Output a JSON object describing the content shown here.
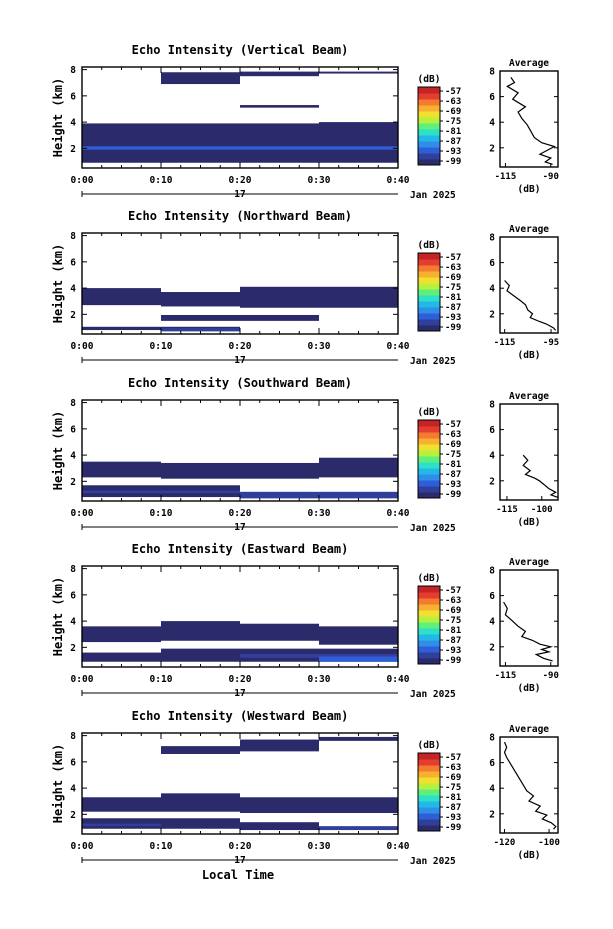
{
  "figure": {
    "x_axis_label": "Local Time",
    "date_day": "17",
    "date_month_year": "Jan 2025",
    "x_tick_labels": [
      "0:00",
      "0:10",
      "0:20",
      "0:30",
      "0:40"
    ],
    "colorbar_unit": "(dB)",
    "colorbar_ticks": [
      "-57",
      "-63",
      "-69",
      "-75",
      "-81",
      "-87",
      "-93",
      "-99"
    ],
    "colorbar_colors": [
      "#2b2b6b",
      "#2f3f9a",
      "#2f5fd8",
      "#2f8fe8",
      "#22b8e8",
      "#2ee0c8",
      "#5ef07a",
      "#b8f040",
      "#f0e030",
      "#f8b030",
      "#f47a30",
      "#e33d30",
      "#c42424"
    ],
    "height_axis_label": "Height (km)",
    "height_ticks": [
      "2",
      "4",
      "6",
      "8"
    ],
    "profile_title": "Average",
    "profile_unit": "(dB)"
  },
  "chart_data": [
    {
      "type": "heatmap",
      "title": "Echo Intensity (Vertical Beam)",
      "xlabel": "",
      "ylabel": "Height (km)",
      "xlim_minutes": [
        0,
        40
      ],
      "ylim_km": [
        0.5,
        8.2
      ],
      "colorbar": {
        "label": "(dB)",
        "range": [
          -99,
          -57
        ]
      },
      "cells": [
        {
          "t": [
            10,
            20
          ],
          "h": [
            6.9,
            7.8
          ],
          "dB": -99
        },
        {
          "t": [
            20,
            30
          ],
          "h": [
            7.5,
            7.85
          ],
          "dB": -99
        },
        {
          "t": [
            30,
            40
          ],
          "h": [
            7.7,
            7.85
          ],
          "dB": -99
        },
        {
          "t": [
            20,
            30
          ],
          "h": [
            5.1,
            5.3
          ],
          "dB": -99
        },
        {
          "t": [
            0,
            30
          ],
          "h": [
            0.9,
            3.9
          ],
          "dB": -98
        },
        {
          "t": [
            30,
            40
          ],
          "h": [
            0.9,
            4.0
          ],
          "dB": -98
        },
        {
          "t": [
            0,
            40
          ],
          "h": [
            1.9,
            2.15
          ],
          "dB": -93
        }
      ],
      "profile": {
        "title": "Average",
        "xlabel": "(dB)",
        "x_ticks": [
          "-115",
          "-90"
        ],
        "xlim": [
          -118,
          -86
        ],
        "ylim_km": [
          0.5,
          8
        ],
        "points": [
          [
            -112,
            7.5
          ],
          [
            -110,
            7.1
          ],
          [
            -114,
            6.8
          ],
          [
            -108,
            6.3
          ],
          [
            -111,
            5.8
          ],
          [
            -104,
            5.2
          ],
          [
            -108,
            4.8
          ],
          [
            -106,
            4.3
          ],
          [
            -103,
            3.8
          ],
          [
            -101,
            3.3
          ],
          [
            -99,
            2.8
          ],
          [
            -95,
            2.4
          ],
          [
            -88,
            2.1
          ],
          [
            -92,
            1.8
          ],
          [
            -96,
            1.5
          ],
          [
            -90,
            1.2
          ],
          [
            -93,
            0.9
          ],
          [
            -89,
            0.7
          ]
        ]
      }
    },
    {
      "type": "heatmap",
      "title": "Echo Intensity (Northward Beam)",
      "xlabel": "",
      "ylabel": "Height (km)",
      "xlim_minutes": [
        0,
        40
      ],
      "ylim_km": [
        0.5,
        8.2
      ],
      "colorbar": {
        "label": "(dB)",
        "range": [
          -99,
          -57
        ]
      },
      "cells": [
        {
          "t": [
            0,
            10
          ],
          "h": [
            2.7,
            4.0
          ],
          "dB": -99
        },
        {
          "t": [
            10,
            20
          ],
          "h": [
            2.6,
            3.7
          ],
          "dB": -99
        },
        {
          "t": [
            20,
            40
          ],
          "h": [
            2.5,
            4.1
          ],
          "dB": -99
        },
        {
          "t": [
            10,
            30
          ],
          "h": [
            1.5,
            1.95
          ],
          "dB": -99
        },
        {
          "t": [
            0,
            20
          ],
          "h": [
            0.8,
            1.05
          ],
          "dB": -98
        },
        {
          "t": [
            10,
            20
          ],
          "h": [
            0.7,
            0.95
          ],
          "dB": -96
        }
      ],
      "profile": {
        "title": "Average",
        "xlabel": "(dB)",
        "x_ticks": [
          "-115",
          "-95"
        ],
        "xlim": [
          -117,
          -92
        ],
        "ylim_km": [
          0.5,
          8
        ],
        "points": [
          [
            -115,
            4.6
          ],
          [
            -113,
            4.2
          ],
          [
            -114,
            3.8
          ],
          [
            -111,
            3.4
          ],
          [
            -108,
            3.0
          ],
          [
            -106,
            2.7
          ],
          [
            -105,
            2.3
          ],
          [
            -103,
            2.0
          ],
          [
            -104,
            1.7
          ],
          [
            -100,
            1.4
          ],
          [
            -97,
            1.2
          ],
          [
            -94,
            0.9
          ],
          [
            -93,
            0.7
          ]
        ]
      }
    },
    {
      "type": "heatmap",
      "title": "Echo Intensity (Southward Beam)",
      "xlabel": "",
      "ylabel": "Height (km)",
      "xlim_minutes": [
        0,
        40
      ],
      "ylim_km": [
        0.5,
        8.2
      ],
      "colorbar": {
        "label": "(dB)",
        "range": [
          -99,
          -57
        ]
      },
      "cells": [
        {
          "t": [
            0,
            10
          ],
          "h": [
            2.3,
            3.5
          ],
          "dB": -99
        },
        {
          "t": [
            10,
            30
          ],
          "h": [
            2.2,
            3.4
          ],
          "dB": -99
        },
        {
          "t": [
            30,
            40
          ],
          "h": [
            2.3,
            3.8
          ],
          "dB": -99
        },
        {
          "t": [
            0,
            20
          ],
          "h": [
            0.8,
            1.7
          ],
          "dB": -98
        },
        {
          "t": [
            20,
            40
          ],
          "h": [
            0.7,
            1.2
          ],
          "dB": -96
        },
        {
          "t": [
            0,
            20
          ],
          "h": [
            1.1,
            1.3
          ],
          "dB": -95
        }
      ],
      "profile": {
        "title": "Average",
        "xlabel": "(dB)",
        "x_ticks": [
          "-115",
          "-100"
        ],
        "xlim": [
          -118,
          -93
        ],
        "ylim_km": [
          0.5,
          8
        ],
        "points": [
          [
            -108,
            4.0
          ],
          [
            -106,
            3.6
          ],
          [
            -108,
            3.2
          ],
          [
            -105,
            2.8
          ],
          [
            -107,
            2.5
          ],
          [
            -103,
            2.2
          ],
          [
            -101,
            2.0
          ],
          [
            -99,
            1.7
          ],
          [
            -97,
            1.4
          ],
          [
            -94,
            1.1
          ],
          [
            -96,
            0.9
          ],
          [
            -93,
            0.7
          ]
        ]
      }
    },
    {
      "type": "heatmap",
      "title": "Echo Intensity (Eastward Beam)",
      "xlabel": "",
      "ylabel": "Height (km)",
      "xlim_minutes": [
        0,
        40
      ],
      "ylim_km": [
        0.5,
        8.2
      ],
      "colorbar": {
        "label": "(dB)",
        "range": [
          -99,
          -57
        ]
      },
      "cells": [
        {
          "t": [
            0,
            10
          ],
          "h": [
            2.4,
            3.6
          ],
          "dB": -99
        },
        {
          "t": [
            10,
            20
          ],
          "h": [
            2.5,
            4.0
          ],
          "dB": -99
        },
        {
          "t": [
            20,
            30
          ],
          "h": [
            2.5,
            3.8
          ],
          "dB": -99
        },
        {
          "t": [
            30,
            40
          ],
          "h": [
            2.2,
            3.6
          ],
          "dB": -99
        },
        {
          "t": [
            0,
            10
          ],
          "h": [
            0.9,
            1.6
          ],
          "dB": -98
        },
        {
          "t": [
            10,
            40
          ],
          "h": [
            0.9,
            1.9
          ],
          "dB": -98
        },
        {
          "t": [
            20,
            40
          ],
          "h": [
            1.2,
            1.5
          ],
          "dB": -95
        },
        {
          "t": [
            30,
            40
          ],
          "h": [
            0.9,
            1.3
          ],
          "dB": -92
        }
      ],
      "profile": {
        "title": "Average",
        "xlabel": "(dB)",
        "x_ticks": [
          "-115",
          "-90"
        ],
        "xlim": [
          -118,
          -86
        ],
        "ylim_km": [
          0.5,
          8
        ],
        "points": [
          [
            -116,
            5.5
          ],
          [
            -114,
            5.0
          ],
          [
            -115,
            4.5
          ],
          [
            -111,
            4.0
          ],
          [
            -108,
            3.6
          ],
          [
            -104,
            3.2
          ],
          [
            -106,
            2.8
          ],
          [
            -100,
            2.5
          ],
          [
            -96,
            2.2
          ],
          [
            -90,
            2.0
          ],
          [
            -95,
            1.8
          ],
          [
            -91,
            1.6
          ],
          [
            -98,
            1.4
          ],
          [
            -94,
            1.1
          ],
          [
            -89,
            0.9
          ]
        ]
      }
    },
    {
      "type": "heatmap",
      "title": "Echo Intensity (Westward Beam)",
      "xlabel": "Local Time",
      "ylabel": "Height (km)",
      "xlim_minutes": [
        0,
        40
      ],
      "ylim_km": [
        0.5,
        8.2
      ],
      "colorbar": {
        "label": "(dB)",
        "range": [
          -99,
          -57
        ]
      },
      "cells": [
        {
          "t": [
            10,
            20
          ],
          "h": [
            6.6,
            7.2
          ],
          "dB": -99
        },
        {
          "t": [
            20,
            30
          ],
          "h": [
            6.8,
            7.7
          ],
          "dB": -99
        },
        {
          "t": [
            30,
            40
          ],
          "h": [
            7.6,
            7.9
          ],
          "dB": -99
        },
        {
          "t": [
            0,
            10
          ],
          "h": [
            2.2,
            3.3
          ],
          "dB": -99
        },
        {
          "t": [
            10,
            20
          ],
          "h": [
            2.2,
            3.6
          ],
          "dB": -99
        },
        {
          "t": [
            20,
            40
          ],
          "h": [
            2.1,
            3.3
          ],
          "dB": -99
        },
        {
          "t": [
            0,
            20
          ],
          "h": [
            0.9,
            1.7
          ],
          "dB": -98
        },
        {
          "t": [
            20,
            30
          ],
          "h": [
            0.8,
            1.4
          ],
          "dB": -98
        },
        {
          "t": [
            30,
            40
          ],
          "h": [
            0.8,
            1.1
          ],
          "dB": -97
        },
        {
          "t": [
            0,
            10
          ],
          "h": [
            1.1,
            1.3
          ],
          "dB": -95
        }
      ],
      "profile": {
        "title": "Average",
        "xlabel": "(dB)",
        "x_ticks": [
          "-120",
          "-100"
        ],
        "xlim": [
          -122,
          -96
        ],
        "ylim_km": [
          0.5,
          8
        ],
        "points": [
          [
            -120,
            7.6
          ],
          [
            -119,
            7.2
          ],
          [
            -120,
            6.8
          ],
          [
            -119,
            6.4
          ],
          [
            -110,
            3.8
          ],
          [
            -107,
            3.4
          ],
          [
            -109,
            3.0
          ],
          [
            -104,
            2.6
          ],
          [
            -106,
            2.2
          ],
          [
            -101,
            1.9
          ],
          [
            -103,
            1.6
          ],
          [
            -99,
            1.3
          ],
          [
            -97,
            1.0
          ],
          [
            -98,
            0.8
          ]
        ]
      }
    }
  ]
}
